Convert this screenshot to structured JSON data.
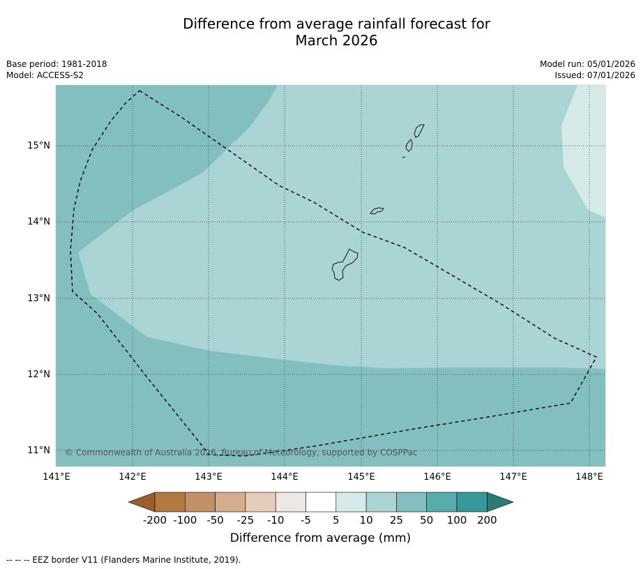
{
  "title": {
    "line1": "Difference from average rainfall forecast for",
    "line2": "March 2026"
  },
  "meta": {
    "base_period": "Base period: 1981-2018",
    "model": "Model: ACCESS-S2",
    "model_run": "Model run: 05/01/2026",
    "issued": "Issued: 07/01/2026"
  },
  "map": {
    "lon_labels": [
      "141°E",
      "142°E",
      "143°E",
      "144°E",
      "145°E",
      "146°E",
      "147°E",
      "148°E"
    ],
    "lat_labels": [
      "15°N",
      "14°N",
      "13°N",
      "12°N",
      "11°N"
    ],
    "copyright": "© Commonwealth of Australia 2026, Bureau of Meteorology, supported by COSPPac",
    "features": {
      "eez_border": "dashed",
      "islands": [
        "Guam",
        "Rota",
        "Tinian",
        "Saipan"
      ]
    }
  },
  "colorbar": {
    "title": "Difference from average (mm)",
    "ticks": [
      "-200",
      "-100",
      "-50",
      "-25",
      "-10",
      "-5",
      "5",
      "10",
      "25",
      "50",
      "100",
      "200"
    ],
    "colors": [
      "#995f2f",
      "#b07a40",
      "#c09068",
      "#d4ae8c",
      "#e6cdb9",
      "#ede8e4",
      "#ffffff",
      "#d5eae9",
      "#abd4d4",
      "#84bfbf",
      "#58acac",
      "#379999",
      "#2a7a78"
    ]
  },
  "footnote": "--  --  -- EEZ border V11 (Flanders Marine Institute, 2019)."
}
